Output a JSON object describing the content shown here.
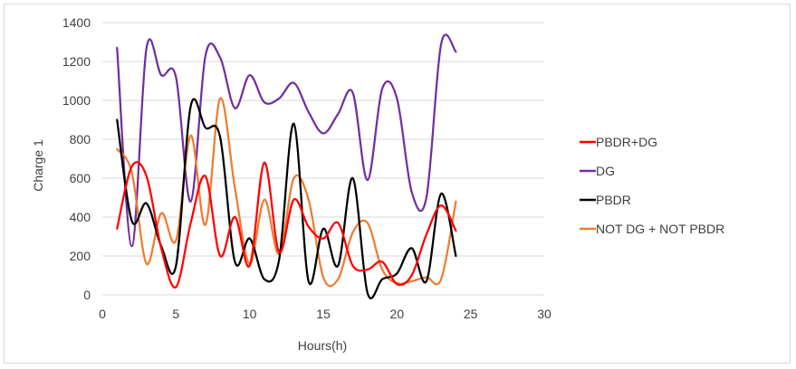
{
  "chart_data": {
    "type": "line",
    "title": "",
    "xlabel": "Hours(h)",
    "ylabel": "Charge 1",
    "xlim": [
      0,
      30
    ],
    "ylim": [
      0,
      1400
    ],
    "xticks": [
      0,
      5,
      10,
      15,
      20,
      25,
      30
    ],
    "yticks": [
      0,
      200,
      400,
      600,
      800,
      1000,
      1200,
      1400
    ],
    "grid": "horizontal",
    "legend_position": "right",
    "x": [
      1,
      2,
      3,
      4,
      5,
      6,
      7,
      8,
      9,
      10,
      11,
      12,
      13,
      14,
      15,
      16,
      17,
      18,
      19,
      20,
      21,
      22,
      23,
      24
    ],
    "series": [
      {
        "name": "PBDR+DG",
        "color": "#ff0000",
        "values": [
          340,
          660,
          610,
          240,
          40,
          370,
          610,
          200,
          400,
          150,
          680,
          220,
          490,
          350,
          290,
          370,
          150,
          130,
          170,
          55,
          100,
          310,
          460,
          330
        ]
      },
      {
        "name": "DG",
        "color": "#7030a0",
        "values": [
          1270,
          250,
          1270,
          1130,
          1120,
          480,
          1230,
          1220,
          960,
          1130,
          990,
          1010,
          1090,
          940,
          830,
          930,
          1040,
          590,
          1060,
          1010,
          530,
          500,
          1290,
          1250
        ]
      },
      {
        "name": "PBDR",
        "color": "#000000",
        "values": [
          900,
          380,
          470,
          250,
          150,
          970,
          860,
          810,
          170,
          290,
          80,
          180,
          880,
          70,
          340,
          150,
          600,
          10,
          80,
          110,
          240,
          70,
          520,
          200
        ]
      },
      {
        "name": "NOT DG + NOT PBDR",
        "color": "#ed7d31",
        "values": [
          750,
          630,
          160,
          420,
          280,
          820,
          360,
          1010,
          550,
          160,
          490,
          210,
          600,
          490,
          90,
          80,
          320,
          370,
          130,
          60,
          70,
          90,
          80,
          480
        ]
      }
    ]
  }
}
